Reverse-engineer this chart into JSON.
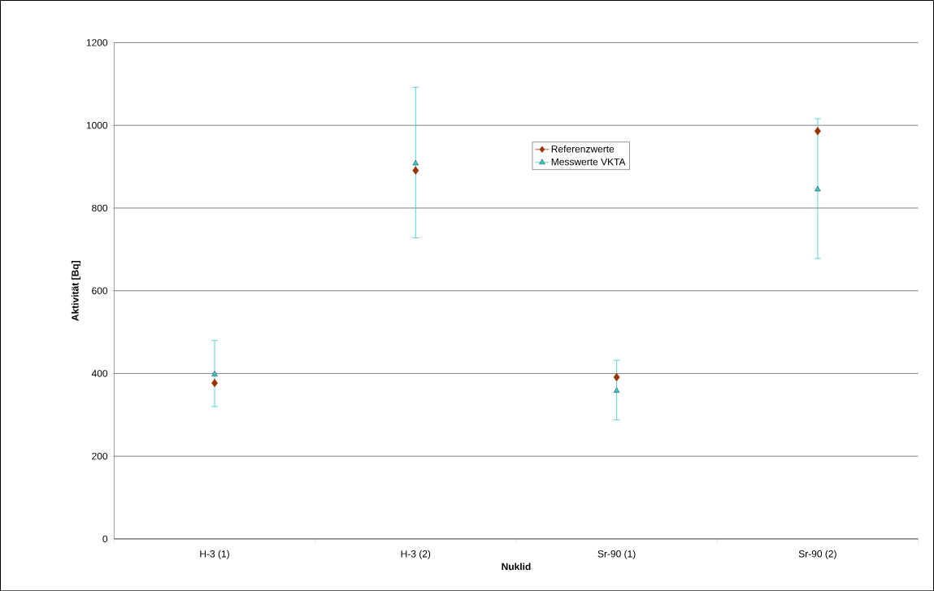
{
  "chart_data": {
    "type": "scatter",
    "xlabel": "Nuklid",
    "ylabel": "Aktivität [Bq]",
    "categories": [
      "H-3 (1)",
      "H-3 (2)",
      "Sr-90 (1)",
      "Sr-90 (2)"
    ],
    "ylim": [
      0,
      1200
    ],
    "yticks": [
      0,
      200,
      400,
      600,
      800,
      1000,
      1200
    ],
    "grid": "y",
    "legend": "top right",
    "series": [
      {
        "name": "Referenzwerte",
        "color": "#993300",
        "marker": "diamond",
        "values": [
          377,
          891,
          391,
          986
        ]
      },
      {
        "name": "Messwerte VKTA",
        "color": "#33cccc",
        "marker": "triangle",
        "values": [
          398,
          908,
          358,
          845
        ],
        "errors": [
          [
            320,
            480
          ],
          [
            728,
            1092
          ],
          [
            288,
            432
          ],
          [
            678,
            1016
          ]
        ]
      }
    ]
  }
}
